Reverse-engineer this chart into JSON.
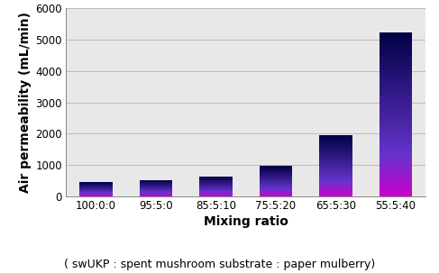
{
  "categories": [
    "100:0:0",
    "95:5:0",
    "85:5:10",
    "75:5:20",
    "65:5:30",
    "55:5:40"
  ],
  "values": [
    460,
    530,
    650,
    970,
    1970,
    5230
  ],
  "ylabel": "Air permeability (mL/min)",
  "xlabel": "Mixing ratio",
  "subtitle": "( swUKP : spent mushroom substrate : paper mulberry)",
  "ylim": [
    0,
    6000
  ],
  "yticks": [
    0,
    1000,
    2000,
    3000,
    4000,
    5000,
    6000
  ],
  "background_color": "#ffffff",
  "plot_bg_color": "#e8e8e8",
  "bar_bottom_color": "#cc00cc",
  "bar_mid_color": "#6633cc",
  "bar_top_color": "#000044",
  "label_fontsize": 10,
  "tick_fontsize": 8.5,
  "subtitle_fontsize": 9,
  "bar_width": 0.55
}
